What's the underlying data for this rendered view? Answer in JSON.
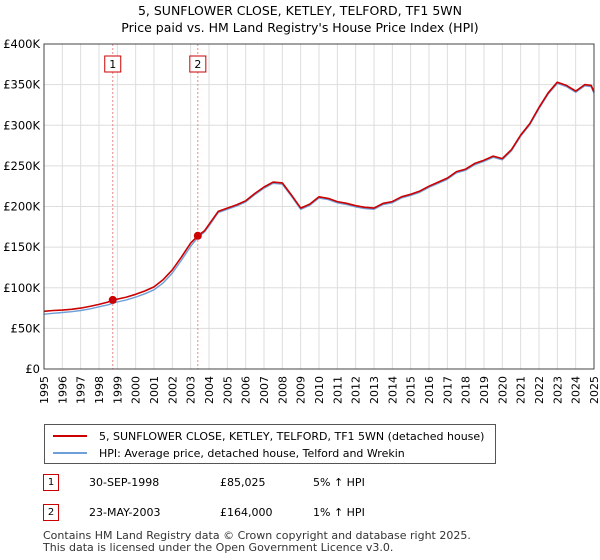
{
  "title": {
    "line1": "5, SUNFLOWER CLOSE, KETLEY, TELFORD, TF1 5WN",
    "line2": "Price paid vs. HM Land Registry's House Price Index (HPI)"
  },
  "colors": {
    "price_line": "#cc0000",
    "hpi_line": "#6f9fd8",
    "grid": "#dddddd",
    "sale_marker_line": "#e88888"
  },
  "chart_data": {
    "type": "line",
    "title": "Price paid vs. HM Land Registry's House Price Index (HPI)",
    "xlabel": "",
    "ylabel": "",
    "xlim": [
      1995,
      2025
    ],
    "ylim": [
      0,
      400000
    ],
    "x_ticks": [
      "1995",
      "1996",
      "1997",
      "1998",
      "1999",
      "2000",
      "2001",
      "2002",
      "2003",
      "2004",
      "2005",
      "2006",
      "2007",
      "2008",
      "2009",
      "2010",
      "2011",
      "2012",
      "2013",
      "2014",
      "2015",
      "2016",
      "2017",
      "2018",
      "2019",
      "2020",
      "2021",
      "2022",
      "2023",
      "2024",
      "2025"
    ],
    "y_ticks": [
      {
        "value": 0,
        "label": "£0"
      },
      {
        "value": 50000,
        "label": "£50K"
      },
      {
        "value": 100000,
        "label": "£100K"
      },
      {
        "value": 150000,
        "label": "£150K"
      },
      {
        "value": 200000,
        "label": "£200K"
      },
      {
        "value": 250000,
        "label": "£250K"
      },
      {
        "value": 300000,
        "label": "£300K"
      },
      {
        "value": 350000,
        "label": "£350K"
      },
      {
        "value": 400000,
        "label": "£400K"
      }
    ],
    "grid": true,
    "series": [
      {
        "name": "5, SUNFLOWER CLOSE, KETLEY, TELFORD, TF1 5WN (detached house)",
        "color": "#cc0000",
        "points": [
          [
            1995.0,
            71000
          ],
          [
            1995.5,
            72000
          ],
          [
            1996.0,
            72500
          ],
          [
            1996.5,
            73500
          ],
          [
            1997.0,
            75000
          ],
          [
            1997.5,
            77000
          ],
          [
            1998.0,
            79500
          ],
          [
            1998.5,
            82500
          ],
          [
            1998.75,
            85025
          ],
          [
            1999.0,
            86000
          ],
          [
            1999.5,
            88500
          ],
          [
            2000.0,
            92000
          ],
          [
            2000.5,
            96000
          ],
          [
            2001.0,
            101000
          ],
          [
            2001.5,
            110000
          ],
          [
            2002.0,
            122000
          ],
          [
            2002.5,
            138000
          ],
          [
            2003.0,
            155000
          ],
          [
            2003.39,
            164000
          ],
          [
            2003.75,
            170000
          ],
          [
            2004.0,
            178000
          ],
          [
            2004.5,
            194000
          ],
          [
            2005.0,
            198000
          ],
          [
            2005.5,
            202000
          ],
          [
            2006.0,
            207000
          ],
          [
            2006.5,
            216000
          ],
          [
            2007.0,
            224000
          ],
          [
            2007.5,
            230000
          ],
          [
            2008.0,
            229000
          ],
          [
            2008.5,
            214000
          ],
          [
            2009.0,
            198000
          ],
          [
            2009.5,
            203000
          ],
          [
            2010.0,
            212000
          ],
          [
            2010.5,
            210000
          ],
          [
            2011.0,
            206000
          ],
          [
            2011.5,
            204000
          ],
          [
            2012.0,
            201000
          ],
          [
            2012.5,
            199000
          ],
          [
            2013.0,
            198000
          ],
          [
            2013.5,
            204000
          ],
          [
            2014.0,
            206000
          ],
          [
            2014.5,
            212000
          ],
          [
            2015.0,
            215000
          ],
          [
            2015.5,
            219000
          ],
          [
            2016.0,
            225000
          ],
          [
            2016.5,
            230000
          ],
          [
            2017.0,
            235000
          ],
          [
            2017.5,
            243000
          ],
          [
            2018.0,
            246000
          ],
          [
            2018.5,
            253000
          ],
          [
            2019.0,
            257000
          ],
          [
            2019.5,
            262000
          ],
          [
            2020.0,
            259000
          ],
          [
            2020.5,
            270000
          ],
          [
            2021.0,
            288000
          ],
          [
            2021.5,
            302000
          ],
          [
            2022.0,
            322000
          ],
          [
            2022.5,
            340000
          ],
          [
            2023.0,
            353000
          ],
          [
            2023.5,
            349000
          ],
          [
            2024.0,
            342000
          ],
          [
            2024.5,
            350000
          ],
          [
            2024.85,
            349000
          ],
          [
            2025.0,
            341000
          ]
        ]
      },
      {
        "name": "HPI: Average price, detached house, Telford and Wrekin",
        "color": "#6f9fd8",
        "points": [
          [
            1995.0,
            67500
          ],
          [
            1995.5,
            68500
          ],
          [
            1996.0,
            69500
          ],
          [
            1996.5,
            70500
          ],
          [
            1997.0,
            72000
          ],
          [
            1997.5,
            74000
          ],
          [
            1998.0,
            76500
          ],
          [
            1998.5,
            79000
          ],
          [
            1998.75,
            81000
          ],
          [
            1999.0,
            82500
          ],
          [
            1999.5,
            85000
          ],
          [
            2000.0,
            88500
          ],
          [
            2000.5,
            92500
          ],
          [
            2001.0,
            97500
          ],
          [
            2001.5,
            106000
          ],
          [
            2002.0,
            118000
          ],
          [
            2002.5,
            134000
          ],
          [
            2003.0,
            151000
          ],
          [
            2003.39,
            162000
          ],
          [
            2003.75,
            168500
          ],
          [
            2004.0,
            176000
          ],
          [
            2004.5,
            192500
          ],
          [
            2005.0,
            196500
          ],
          [
            2005.5,
            200500
          ],
          [
            2006.0,
            205500
          ],
          [
            2006.5,
            214500
          ],
          [
            2007.0,
            222500
          ],
          [
            2007.5,
            228500
          ],
          [
            2008.0,
            227500
          ],
          [
            2008.5,
            212500
          ],
          [
            2009.0,
            196500
          ],
          [
            2009.5,
            201500
          ],
          [
            2010.0,
            210500
          ],
          [
            2010.5,
            208500
          ],
          [
            2011.0,
            204500
          ],
          [
            2011.5,
            202500
          ],
          [
            2012.0,
            199500
          ],
          [
            2012.5,
            197500
          ],
          [
            2013.0,
            196500
          ],
          [
            2013.5,
            202500
          ],
          [
            2014.0,
            204500
          ],
          [
            2014.5,
            210500
          ],
          [
            2015.0,
            213500
          ],
          [
            2015.5,
            217500
          ],
          [
            2016.0,
            223500
          ],
          [
            2016.5,
            228500
          ],
          [
            2017.0,
            233500
          ],
          [
            2017.5,
            241500
          ],
          [
            2018.0,
            244500
          ],
          [
            2018.5,
            251500
          ],
          [
            2019.0,
            255500
          ],
          [
            2019.5,
            260500
          ],
          [
            2020.0,
            257500
          ],
          [
            2020.5,
            268500
          ],
          [
            2021.0,
            286500
          ],
          [
            2021.5,
            300500
          ],
          [
            2022.0,
            320500
          ],
          [
            2022.5,
            338500
          ],
          [
            2023.0,
            351500
          ],
          [
            2023.5,
            347500
          ],
          [
            2024.0,
            340500
          ],
          [
            2024.5,
            348500
          ],
          [
            2024.85,
            347500
          ],
          [
            2025.0,
            339500
          ]
        ]
      }
    ],
    "sales": [
      {
        "marker": "1",
        "x": 1998.75,
        "value": 85025
      },
      {
        "marker": "2",
        "x": 2003.39,
        "value": 164000
      }
    ]
  },
  "legend": {
    "items": [
      {
        "label": "5, SUNFLOWER CLOSE, KETLEY, TELFORD, TF1 5WN (detached house)",
        "color": "#cc0000"
      },
      {
        "label": "HPI: Average price, detached house, Telford and Wrekin",
        "color": "#6f9fd8"
      }
    ]
  },
  "sales_table": [
    {
      "marker": "1",
      "date": "30-SEP-1998",
      "price": "£85,025",
      "hpi": "5% ↑ HPI"
    },
    {
      "marker": "2",
      "date": "23-MAY-2003",
      "price": "£164,000",
      "hpi": "1% ↑ HPI"
    }
  ],
  "footer": {
    "line1": "Contains HM Land Registry data © Crown copyright and database right 2025.",
    "line2": "This data is licensed under the Open Government Licence v3.0."
  }
}
